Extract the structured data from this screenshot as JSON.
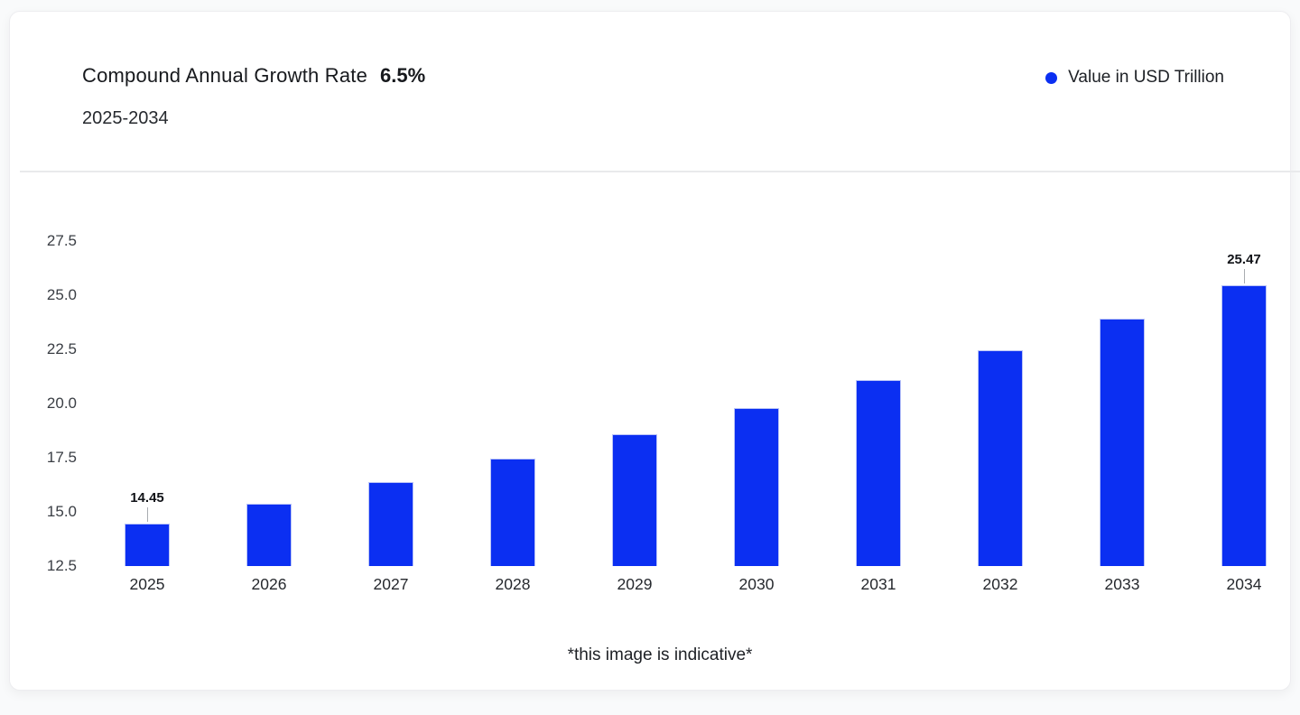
{
  "header": {
    "title": "Compound Annual Growth Rate",
    "cagr_value": "6.5%",
    "subtitle": "2025-2034"
  },
  "legend": {
    "label": "Value in USD Trillion",
    "marker_color": "#0b2ff2"
  },
  "footer": {
    "note": "*this image is indicative*"
  },
  "chart_data": {
    "type": "bar",
    "title": "Compound Annual Growth Rate 6.5%",
    "subtitle": "2025-2034",
    "categories": [
      "2025",
      "2026",
      "2027",
      "2028",
      "2029",
      "2030",
      "2031",
      "2032",
      "2033",
      "2034"
    ],
    "series": [
      {
        "name": "Value in USD Trillion",
        "values": [
          14.45,
          15.39,
          16.39,
          17.45,
          18.59,
          19.8,
          21.08,
          22.45,
          23.91,
          25.47
        ]
      }
    ],
    "bar_color": "#0b2ff2",
    "y_tick_labels": [
      "27.5",
      "25.0",
      "22.5",
      "20.0",
      "17.5",
      "15.0",
      "12.5"
    ],
    "ylim": [
      12.5,
      28.75
    ],
    "xlabel": "",
    "ylabel": "",
    "grid": false,
    "legend_position": "top-right",
    "data_labels": [
      {
        "index": 0,
        "text": "14.45"
      },
      {
        "index": 9,
        "text": "25.47"
      }
    ]
  }
}
